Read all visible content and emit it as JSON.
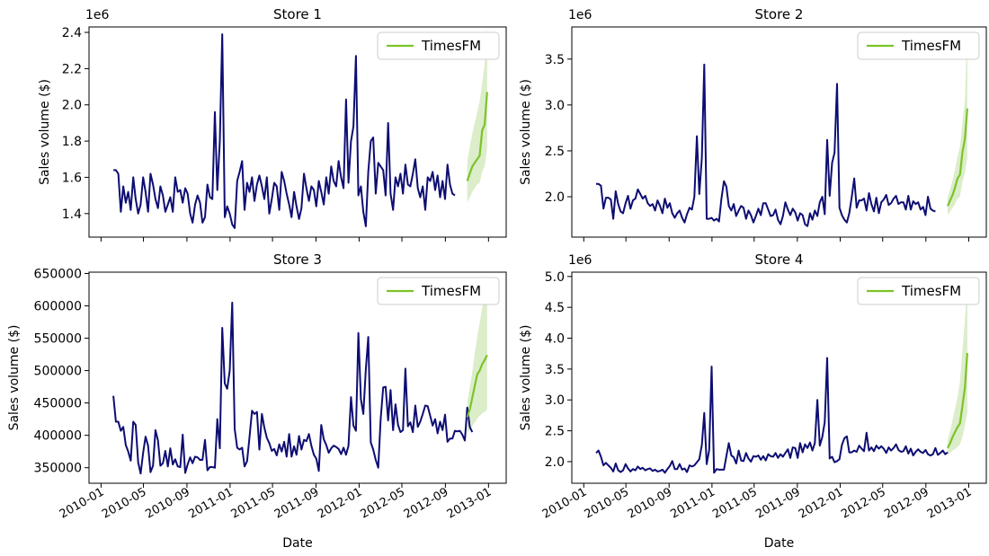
{
  "colors": {
    "history": "#0d0d73",
    "forecast": "#7cc32a",
    "band": "#d8ebc4",
    "axis": "#000000"
  },
  "chart_data": [
    {
      "type": "line",
      "title": "Store 1",
      "ylabel": "Sales volume ($)",
      "xlabel": "",
      "y_offset_label": "1e6",
      "y_scale": 1000000,
      "ylim": [
        1.27,
        2.43
      ],
      "yticks": [
        "1.4",
        "1.6",
        "1.8",
        "2.0",
        "2.2",
        "2.4"
      ],
      "xtick_labels": [],
      "legend": {
        "label": "TimesFM",
        "position": "top-right"
      },
      "history": {
        "start": "2010-02-05",
        "values": [
          1.64,
          1.64,
          1.62,
          1.41,
          1.55,
          1.46,
          1.52,
          1.42,
          1.6,
          1.48,
          1.4,
          1.45,
          1.6,
          1.52,
          1.41,
          1.62,
          1.56,
          1.48,
          1.43,
          1.55,
          1.5,
          1.41,
          1.45,
          1.49,
          1.41,
          1.6,
          1.52,
          1.53,
          1.46,
          1.54,
          1.51,
          1.4,
          1.35,
          1.45,
          1.5,
          1.46,
          1.35,
          1.38,
          1.56,
          1.49,
          1.48,
          1.96,
          1.53,
          1.8,
          2.39,
          1.38,
          1.44,
          1.4,
          1.34,
          1.32,
          1.58,
          1.63,
          1.69,
          1.42,
          1.57,
          1.52,
          1.6,
          1.47,
          1.56,
          1.61,
          1.55,
          1.48,
          1.6,
          1.4,
          1.48,
          1.57,
          1.55,
          1.42,
          1.63,
          1.58,
          1.51,
          1.45,
          1.38,
          1.52,
          1.44,
          1.37,
          1.43,
          1.62,
          1.54,
          1.47,
          1.55,
          1.53,
          1.44,
          1.58,
          1.52,
          1.45,
          1.6,
          1.51,
          1.66,
          1.58,
          1.55,
          1.69,
          1.6,
          1.54,
          2.03,
          1.57,
          1.8,
          1.88,
          2.27,
          1.5,
          1.55,
          1.41,
          1.33,
          1.63,
          1.8,
          1.82,
          1.51,
          1.68,
          1.66,
          1.64,
          1.5,
          1.9,
          1.51,
          1.42,
          1.6,
          1.55,
          1.62,
          1.51,
          1.67,
          1.56,
          1.55,
          1.62,
          1.7,
          1.54,
          1.49,
          1.55,
          1.42,
          1.6,
          1.58,
          1.63,
          1.53,
          1.61,
          1.49,
          1.58,
          1.48,
          1.67,
          1.56,
          1.51,
          1.5
        ]
      },
      "forecast": {
        "start": "2012-11-02",
        "values": [
          1.58,
          1.62,
          1.66,
          1.68,
          1.7,
          1.72,
          1.86,
          1.89,
          2.07
        ],
        "lower": [
          1.46,
          1.49,
          1.52,
          1.54,
          1.56,
          1.57,
          1.63,
          1.66,
          1.76
        ],
        "upper": [
          1.69,
          1.77,
          1.84,
          1.9,
          1.96,
          2.02,
          2.12,
          2.22,
          2.43
        ]
      }
    },
    {
      "type": "line",
      "title": "Store 2",
      "ylabel": "Sales volume ($)",
      "xlabel": "",
      "y_offset_label": "1e6",
      "y_scale": 1000000,
      "ylim": [
        1.56,
        3.85
      ],
      "yticks": [
        "2.0",
        "2.5",
        "3.0",
        "3.5"
      ],
      "xtick_labels": [],
      "legend": {
        "label": "TimesFM",
        "position": "top-right"
      },
      "history": {
        "start": "2010-02-05",
        "values": [
          2.14,
          2.14,
          2.12,
          1.87,
          1.99,
          1.99,
          1.97,
          1.76,
          2.06,
          1.92,
          1.84,
          1.82,
          1.93,
          2.01,
          1.87,
          1.96,
          1.98,
          2.08,
          2.03,
          1.98,
          2.01,
          1.93,
          1.9,
          1.92,
          1.85,
          1.96,
          1.9,
          1.82,
          1.98,
          1.88,
          1.93,
          1.82,
          1.77,
          1.82,
          1.85,
          1.77,
          1.72,
          1.81,
          1.88,
          1.86,
          2.0,
          2.66,
          2.03,
          2.42,
          3.44,
          1.76,
          1.76,
          1.77,
          1.74,
          1.76,
          1.73,
          1.98,
          2.17,
          2.11,
          1.9,
          1.85,
          1.92,
          1.79,
          1.85,
          1.9,
          1.88,
          1.76,
          1.85,
          1.8,
          1.72,
          1.79,
          1.87,
          1.8,
          1.93,
          1.93,
          1.86,
          1.79,
          1.8,
          1.86,
          1.75,
          1.7,
          1.79,
          1.94,
          1.86,
          1.8,
          1.87,
          1.83,
          1.74,
          1.82,
          1.8,
          1.7,
          1.68,
          1.82,
          1.75,
          1.85,
          1.79,
          1.94,
          2.0,
          1.81,
          2.62,
          2.01,
          2.37,
          2.48,
          3.23,
          1.88,
          1.8,
          1.75,
          1.72,
          1.82,
          2.0,
          2.2,
          1.88,
          1.96,
          1.96,
          1.98,
          1.85,
          2.04,
          1.92,
          1.84,
          1.99,
          1.82,
          1.94,
          1.97,
          2.02,
          1.91,
          1.93,
          1.98,
          2.01,
          1.92,
          1.94,
          1.94,
          1.86,
          2.01,
          1.86,
          1.95,
          1.92,
          1.94,
          1.86,
          1.89,
          1.8,
          2.0,
          1.87,
          1.85,
          1.84
        ]
      },
      "forecast": {
        "start": "2012-11-02",
        "values": [
          1.9,
          1.96,
          2.02,
          2.1,
          2.2,
          2.24,
          2.48,
          2.63,
          2.96
        ],
        "lower": [
          1.8,
          1.84,
          1.88,
          1.92,
          1.98,
          2.0,
          2.16,
          2.26,
          2.42
        ],
        "upper": [
          2.0,
          2.08,
          2.18,
          2.3,
          2.44,
          2.54,
          2.8,
          3.05,
          3.85
        ]
      }
    },
    {
      "type": "line",
      "title": "Store 3",
      "ylabel": "Sales volume ($)",
      "xlabel": "Date",
      "y_offset_label": "",
      "y_scale": 1,
      "ylim": [
        326000,
        652000
      ],
      "yticks": [
        "350000",
        "400000",
        "450000",
        "500000",
        "550000",
        "600000",
        "650000"
      ],
      "xtick_labels": [
        "2010-01",
        "2010-05",
        "2010-09",
        "2011-01",
        "2011-05",
        "2011-09",
        "2012-01",
        "2012-05",
        "2012-09",
        "2013-01"
      ],
      "legend": {
        "label": "TimesFM",
        "position": "top-right"
      },
      "history": {
        "start": "2010-02-05",
        "values": [
          461000,
          421000,
          421000,
          407000,
          413000,
          385000,
          375000,
          361000,
          421000,
          416000,
          358000,
          341000,
          373000,
          398000,
          384000,
          343000,
          353000,
          408000,
          392000,
          353000,
          357000,
          376000,
          352000,
          380000,
          355000,
          363000,
          352000,
          351000,
          401000,
          342000,
          355000,
          366000,
          357000,
          367000,
          366000,
          362000,
          362000,
          393000,
          346000,
          351000,
          351000,
          350000,
          425000,
          380000,
          566000,
          480000,
          472000,
          500000,
          605000,
          410000,
          381000,
          378000,
          381000,
          352000,
          360000,
          397000,
          438000,
          433000,
          436000,
          378000,
          433000,
          412000,
          396000,
          388000,
          376000,
          379000,
          369000,
          386000,
          375000,
          390000,
          367000,
          402000,
          367000,
          383000,
          370000,
          399000,
          378000,
          393000,
          391000,
          402000,
          384000,
          370000,
          364000,
          345000,
          416000,
          394000,
          385000,
          373000,
          380000,
          384000,
          382000,
          379000,
          371000,
          381000,
          370000,
          384000,
          459000,
          415000,
          407000,
          558000,
          456000,
          433000,
          502000,
          552000,
          389000,
          378000,
          362000,
          350000,
          425000,
          474000,
          475000,
          423000,
          470000,
          408000,
          448000,
          416000,
          405000,
          408000,
          503000,
          414000,
          420000,
          405000,
          446000,
          413000,
          421000,
          433000,
          446000,
          445000,
          430000,
          415000,
          425000,
          403000,
          421000,
          408000,
          432000,
          390000,
          395000,
          395000,
          407000,
          406000,
          407000,
          401000,
          392000,
          443000,
          413000,
          405000
        ]
      },
      "forecast": {
        "start": "2012-11-02",
        "values": [
          428000,
          440000,
          458000,
          476000,
          494000,
          500000,
          510000,
          516000,
          524000
        ],
        "lower": [
          404000,
          408000,
          414000,
          420000,
          426000,
          430000,
          434000,
          436000,
          440000
        ],
        "upper": [
          452000,
          474000,
          498000,
          526000,
          552000,
          574000,
          596000,
          618000,
          648000
        ]
      }
    },
    {
      "type": "line",
      "title": "Store 4",
      "ylabel": "Sales volume ($)",
      "xlabel": "Date",
      "y_offset_label": "1e6",
      "y_scale": 1000000,
      "ylim": [
        1.65,
        5.07
      ],
      "yticks": [
        "2.0",
        "2.5",
        "3.0",
        "3.5",
        "4.0",
        "4.5",
        "5.0"
      ],
      "xtick_labels": [
        "2010-01",
        "2010-05",
        "2010-09",
        "2011-01",
        "2011-05",
        "2011-09",
        "2012-01",
        "2012-05",
        "2012-09",
        "2013-01"
      ],
      "legend": {
        "label": "TimesFM",
        "position": "top-right"
      },
      "history": {
        "start": "2010-02-05",
        "values": [
          2.14,
          2.18,
          2.08,
          1.94,
          1.98,
          1.94,
          1.9,
          1.84,
          1.97,
          1.86,
          1.83,
          1.86,
          1.96,
          1.89,
          1.84,
          1.88,
          1.86,
          1.92,
          1.88,
          1.9,
          1.86,
          1.88,
          1.89,
          1.85,
          1.87,
          1.84,
          1.85,
          1.87,
          1.82,
          1.88,
          1.93,
          2.01,
          1.88,
          1.88,
          1.96,
          1.87,
          1.89,
          1.83,
          1.94,
          1.92,
          1.94,
          1.99,
          2.04,
          2.27,
          2.79,
          1.96,
          2.19,
          3.54,
          1.82,
          1.88,
          1.87,
          1.87,
          1.87,
          2.09,
          2.3,
          2.1,
          2.07,
          1.97,
          2.18,
          2.02,
          2.01,
          2.14,
          2.05,
          2.0,
          2.09,
          2.08,
          2.1,
          2.03,
          2.09,
          2.02,
          2.12,
          2.09,
          2.08,
          2.14,
          2.06,
          2.12,
          2.08,
          2.14,
          2.2,
          2.06,
          2.23,
          2.22,
          2.06,
          2.3,
          2.15,
          2.28,
          2.22,
          2.31,
          2.18,
          2.3,
          3.0,
          2.26,
          2.4,
          2.64,
          3.68,
          2.05,
          2.08,
          1.99,
          2.01,
          2.04,
          2.27,
          2.38,
          2.41,
          2.15,
          2.15,
          2.18,
          2.16,
          2.26,
          2.21,
          2.17,
          2.47,
          2.18,
          2.23,
          2.17,
          2.26,
          2.21,
          2.25,
          2.21,
          2.14,
          2.23,
          2.18,
          2.22,
          2.28,
          2.19,
          2.16,
          2.17,
          2.25,
          2.13,
          2.21,
          2.1,
          2.16,
          2.2,
          2.16,
          2.14,
          2.19,
          2.12,
          2.1,
          2.12,
          2.22,
          2.11,
          2.14,
          2.18,
          2.12,
          2.15
        ]
      },
      "forecast": {
        "start": "2012-11-02",
        "values": [
          2.22,
          2.3,
          2.4,
          2.48,
          2.56,
          2.62,
          2.9,
          3.2,
          3.76
        ],
        "lower": [
          2.1,
          2.14,
          2.18,
          2.2,
          2.24,
          2.28,
          2.4,
          2.58,
          2.8
        ],
        "upper": [
          2.34,
          2.5,
          2.68,
          2.86,
          3.04,
          3.3,
          3.8,
          4.3,
          4.85
        ]
      }
    }
  ]
}
